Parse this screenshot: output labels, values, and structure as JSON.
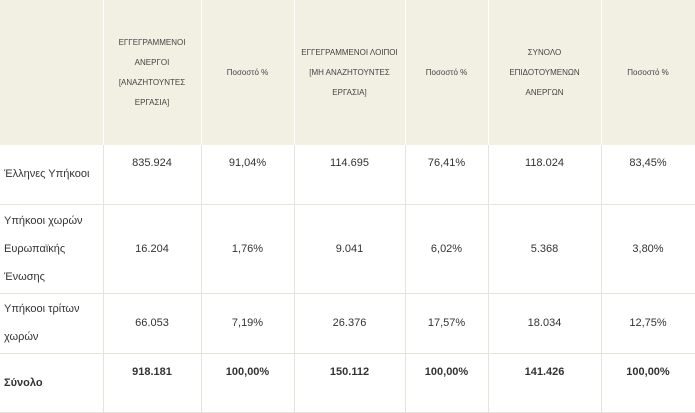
{
  "table": {
    "headers": [
      "",
      "ΕΓΓΕΓΡΑΜΜΕΝΟΙ ΑΝΕΡΓΟΙ [ΑΝΑΖΗΤΟΥΝΤΕΣ ΕΡΓΑΣΙΑ]",
      "Ποσοστό %",
      "ΕΓΓΕΓΡΑΜΜΕΝΟΙ ΛΟΙΠΟΙ [ΜΗ ΑΝΑΖΗΤΟΥΝΤΕΣ ΕΡΓΑΣΙΑ]",
      "Ποσοστό %",
      "ΣΥΝΟΛΟ ΕΠΙΔΟΤΟΥΜΕΝΩΝ ΑΝΕΡΓΩΝ",
      "Ποσοστό %"
    ],
    "rows": [
      [
        "Έλληνες Υπήκοοι",
        "835.924",
        "91,04%",
        "114.695",
        "76,41%",
        "118.024",
        "83,45%"
      ],
      [
        "Υπήκοοι χωρών Ευρωπαϊκής Ένωσης",
        "16.204",
        "1,76%",
        "9.041",
        "6,02%",
        "5.368",
        "3,80%"
      ],
      [
        "Υπήκοοι τρίτων χωρών",
        "66.053",
        "7,19%",
        "26.376",
        "17,57%",
        "18.034",
        "12,75%"
      ],
      [
        "Σύνολο",
        "918.181",
        "100,00%",
        "150.112",
        "100,00%",
        "141.426",
        "100,00%"
      ]
    ]
  },
  "colors": {
    "header_background": "#f2efe3",
    "grid_line": "#e6e3d8",
    "text": "#333333"
  }
}
